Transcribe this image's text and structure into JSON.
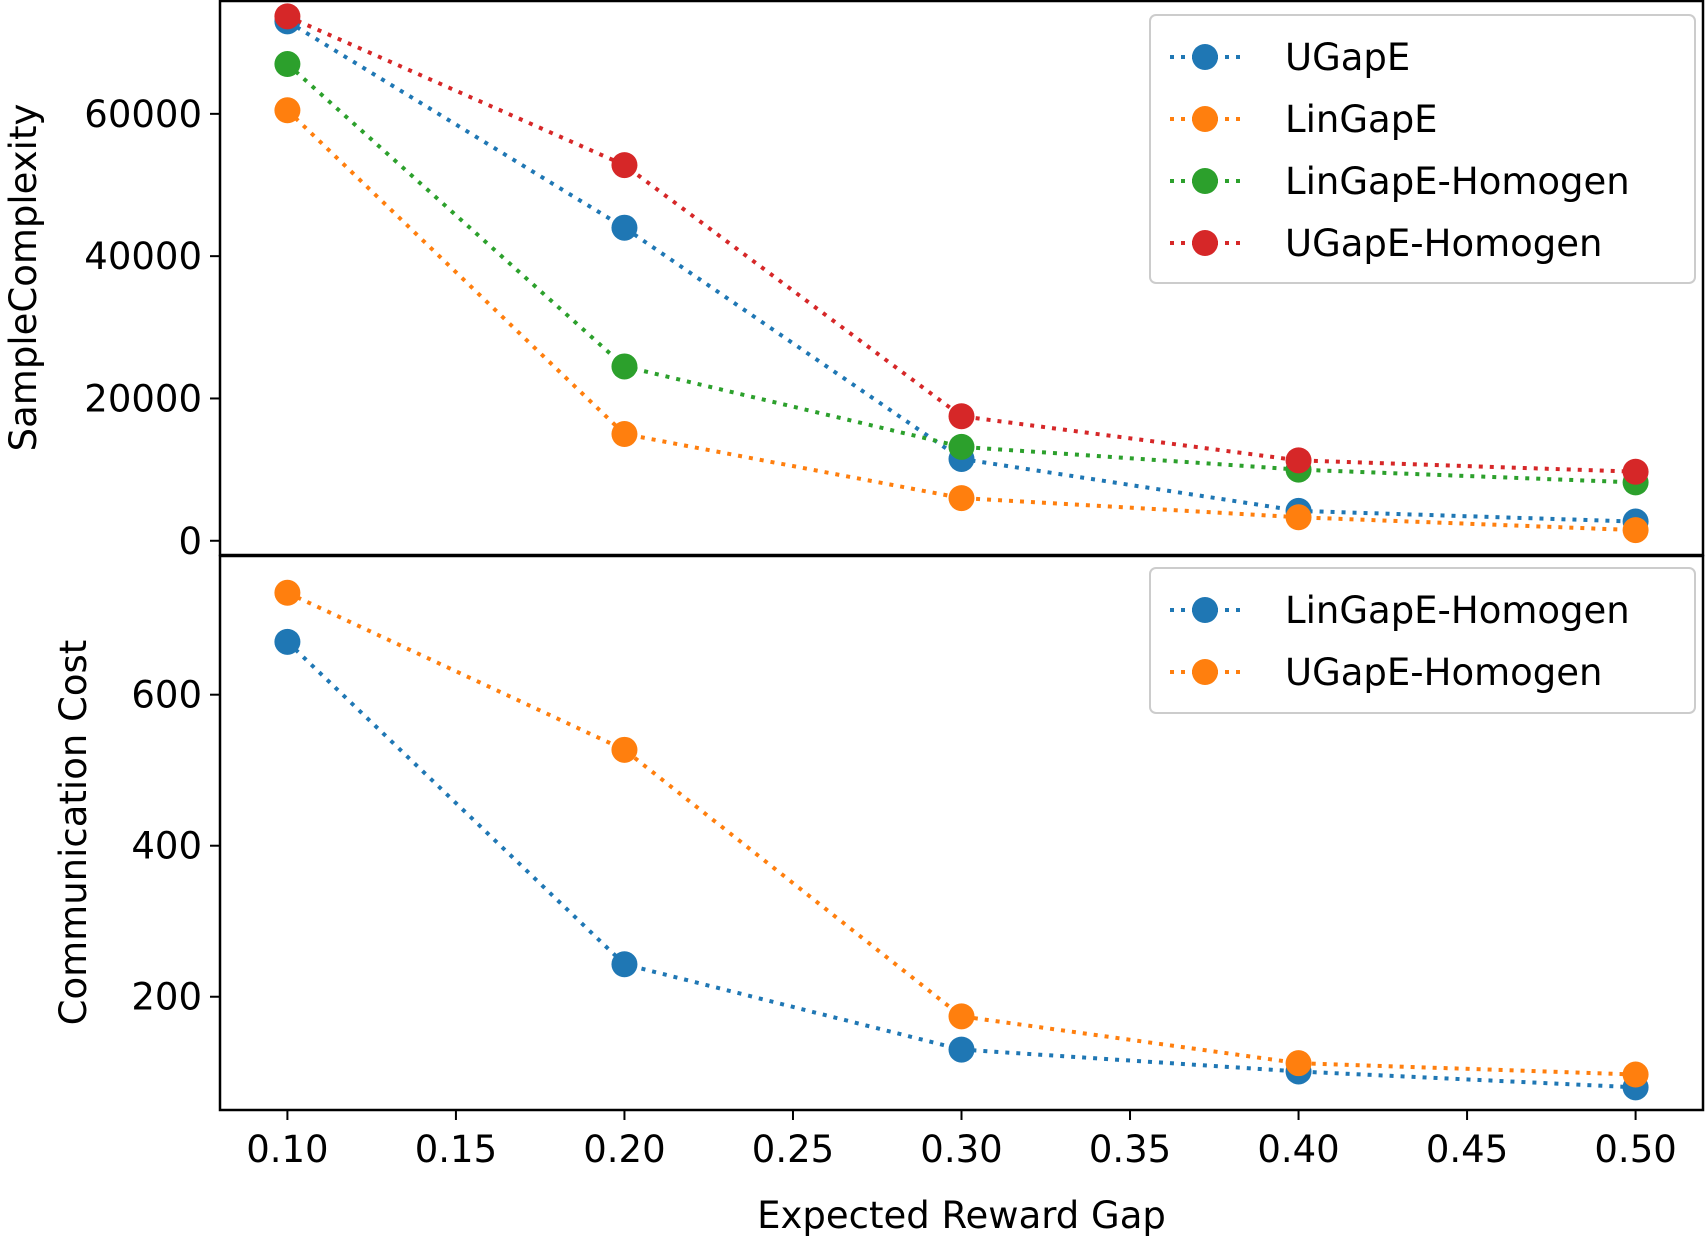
{
  "chart_data": [
    {
      "type": "line",
      "title": "",
      "xlabel": "",
      "ylabel": "SampleComplexity",
      "x": [
        0.1,
        0.2,
        0.3,
        0.4,
        0.5
      ],
      "xlim": [
        0.08,
        0.52
      ],
      "ylim": [
        -2000,
        76000
      ],
      "yticks": [
        0,
        20000,
        40000,
        60000
      ],
      "ytick_labels": [
        "0",
        "20000",
        "40000",
        "60000"
      ],
      "legend_position": "upper right",
      "line_style": "dotted",
      "marker": "circle",
      "series": [
        {
          "name": "UGapE",
          "color": "#1f77b4",
          "values": [
            73000,
            44000,
            11500,
            4200,
            2700
          ]
        },
        {
          "name": "LinGapE",
          "color": "#ff7f0e",
          "values": [
            60500,
            15000,
            6000,
            3300,
            1500
          ]
        },
        {
          "name": "LinGapE-Homogen",
          "color": "#2ca02c",
          "values": [
            67000,
            24500,
            13200,
            10000,
            8200
          ]
        },
        {
          "name": "UGapE-Homogen",
          "color": "#d62728",
          "values": [
            73700,
            52800,
            17500,
            11300,
            9700
          ]
        }
      ]
    },
    {
      "type": "line",
      "title": "",
      "xlabel": "Expected Reward Gap",
      "ylabel": "Communication Cost",
      "x": [
        0.1,
        0.2,
        0.3,
        0.4,
        0.5
      ],
      "xlim": [
        0.08,
        0.52
      ],
      "ylim": [
        50,
        785
      ],
      "yticks": [
        200,
        400,
        600
      ],
      "ytick_labels": [
        "200",
        "400",
        "600"
      ],
      "xticks": [
        0.1,
        0.15,
        0.2,
        0.25,
        0.3,
        0.35,
        0.4,
        0.45,
        0.5
      ],
      "xtick_labels": [
        "0.10",
        "0.15",
        "0.20",
        "0.25",
        "0.30",
        "0.35",
        "0.40",
        "0.45",
        "0.50"
      ],
      "legend_position": "upper right",
      "line_style": "dotted",
      "marker": "circle",
      "series": [
        {
          "name": "LinGapE-Homogen",
          "color": "#1f77b4",
          "values": [
            670,
            243,
            130,
            101,
            80
          ]
        },
        {
          "name": "UGapE-Homogen",
          "color": "#ff7f0e",
          "values": [
            735,
            527,
            174,
            112,
            97
          ]
        }
      ]
    }
  ]
}
